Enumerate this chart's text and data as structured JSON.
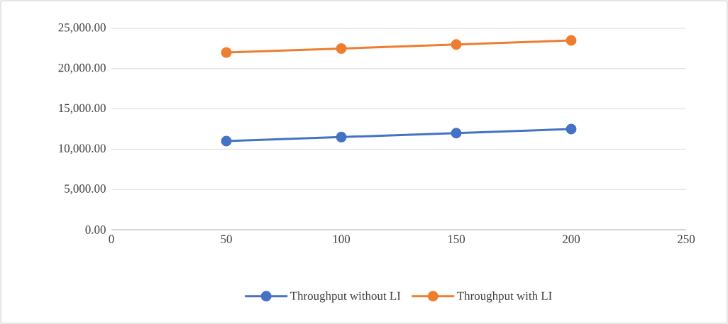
{
  "chart_data": {
    "type": "line",
    "x": [
      50,
      100,
      150,
      200
    ],
    "series": [
      {
        "name": "Throughput without LI",
        "color": "#4472c4",
        "values": [
          11000,
          11500,
          12000,
          12500
        ]
      },
      {
        "name": "Throughput with LI",
        "color": "#ed7d31",
        "values": [
          22000,
          22500,
          23000,
          23500
        ]
      }
    ],
    "xlim": [
      0,
      250
    ],
    "xticks": [
      0,
      50,
      100,
      150,
      200,
      250
    ],
    "ylim": [
      0,
      25000
    ],
    "yticks": [
      {
        "value": 0,
        "label": "0.00"
      },
      {
        "value": 5000,
        "label": "5,000.00"
      },
      {
        "value": 10000,
        "label": "10,000.00"
      },
      {
        "value": 15000,
        "label": "15,000.00"
      },
      {
        "value": 20000,
        "label": "20,000.00"
      },
      {
        "value": 25000,
        "label": "25,000.00"
      }
    ],
    "grid": "y",
    "legend": "bottom",
    "marker": "circle",
    "line_style": "solid"
  }
}
